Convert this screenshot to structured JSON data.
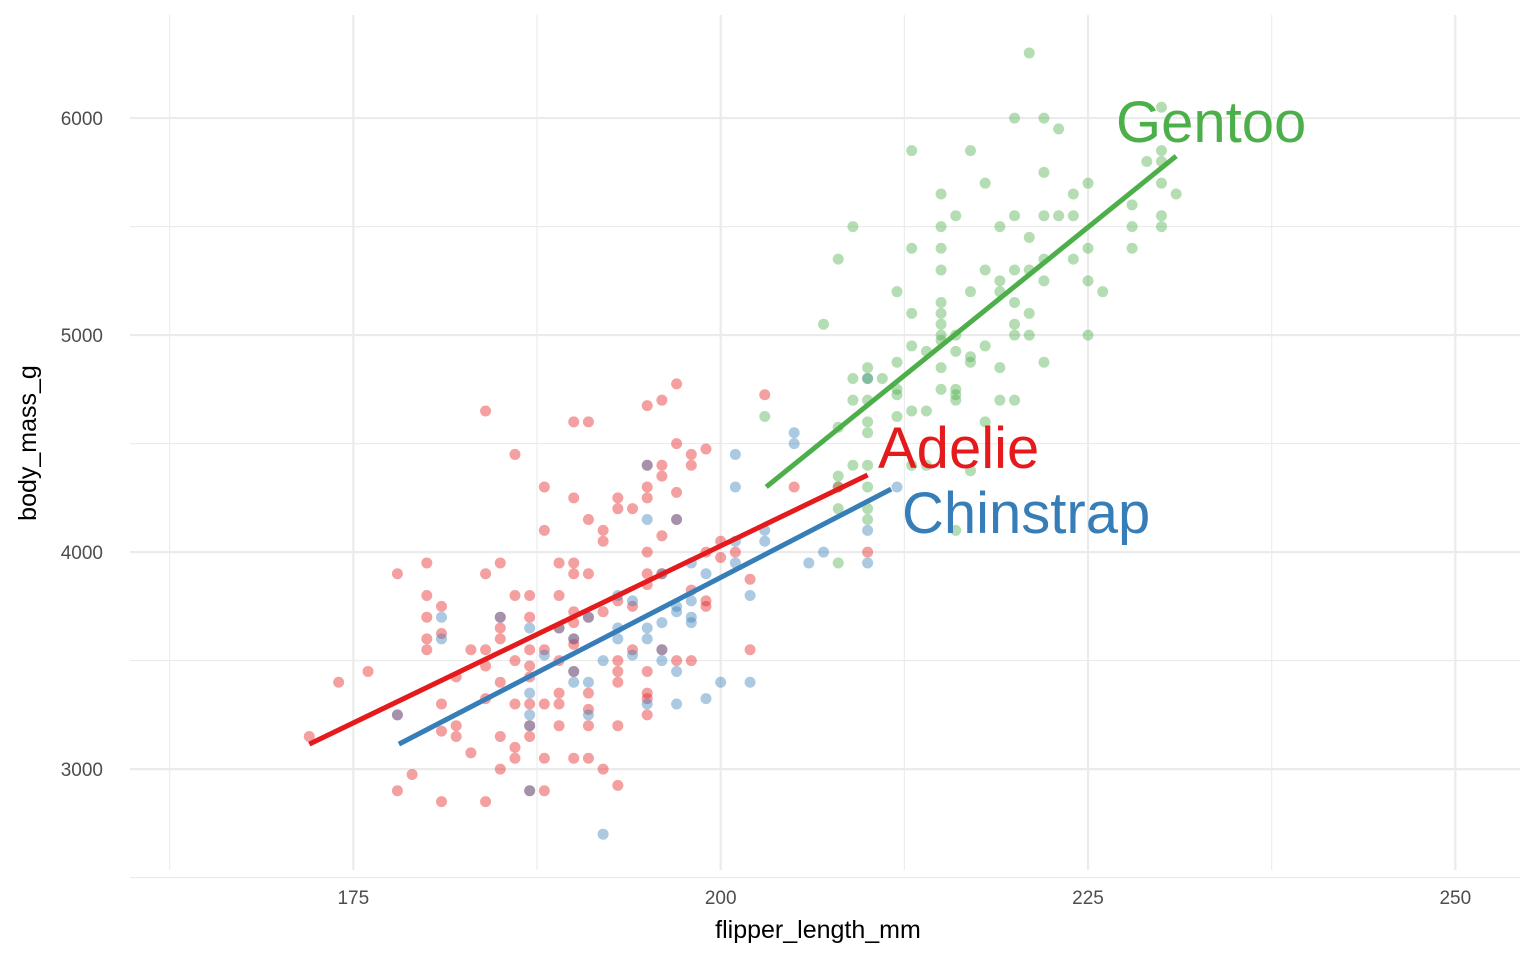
{
  "chart_data": {
    "type": "scatter",
    "title": "",
    "xlabel": "flipper_length_mm",
    "ylabel": "body_mass_g",
    "xlim": [
      159.8,
      254.4
    ],
    "ylim": [
      2535,
      6475
    ],
    "xticks": [
      175,
      200,
      225,
      250
    ],
    "yticks": [
      3000,
      4000,
      5000,
      6000
    ],
    "grid": true,
    "legend": "none (direct labels at end of fit lines)",
    "series": [
      {
        "name": "Adelie",
        "color": "#E41A1C",
        "points_x": [
          172,
          174,
          176,
          178,
          178,
          178,
          179,
          180,
          180,
          180,
          180,
          180,
          181,
          181,
          181,
          181,
          181,
          182,
          182,
          182,
          183,
          183,
          184,
          184,
          184,
          184,
          184,
          184,
          185,
          185,
          185,
          185,
          185,
          185,
          185,
          186,
          186,
          186,
          186,
          186,
          186,
          187,
          187,
          187,
          187,
          187,
          187,
          187,
          187,
          187,
          188,
          188,
          188,
          188,
          188,
          188,
          189,
          189,
          189,
          189,
          189,
          189,
          189,
          190,
          190,
          190,
          190,
          190,
          190,
          190,
          190,
          190,
          190,
          191,
          191,
          191,
          191,
          191,
          191,
          191,
          191,
          192,
          192,
          192,
          192,
          193,
          193,
          193,
          193,
          193,
          193,
          193,
          193,
          194,
          194,
          194,
          195,
          195,
          195,
          195,
          195,
          195,
          195,
          195,
          195,
          195,
          195,
          196,
          196,
          196,
          196,
          196,
          196,
          197,
          197,
          197,
          197,
          197,
          198,
          198,
          198,
          198,
          199,
          199,
          199,
          199,
          200,
          200,
          201,
          202,
          202,
          203,
          205,
          208,
          210
        ],
        "points_y": [
          3150,
          3400,
          3450,
          3900,
          2900,
          3250,
          2975,
          3950,
          3800,
          3700,
          3600,
          3550,
          3750,
          3625,
          3300,
          3175,
          2850,
          3425,
          3200,
          3150,
          3550,
          3075,
          4650,
          3900,
          3550,
          3475,
          3325,
          2850,
          3950,
          3700,
          3650,
          3600,
          3400,
          3150,
          3000,
          4450,
          3800,
          3500,
          3300,
          3100,
          3050,
          3800,
          3700,
          3550,
          3475,
          3425,
          3300,
          3200,
          3150,
          2900,
          4300,
          4100,
          3550,
          3300,
          3050,
          2900,
          3950,
          3800,
          3650,
          3500,
          3350,
          3300,
          3200,
          4600,
          4250,
          3950,
          3900,
          3725,
          3675,
          3600,
          3575,
          3450,
          3050,
          4600,
          4150,
          3900,
          3700,
          3350,
          3275,
          3200,
          3050,
          4100,
          4050,
          3725,
          3000,
          4250,
          4200,
          3775,
          3500,
          3450,
          3400,
          3200,
          2925,
          4200,
          3750,
          3550,
          4675,
          4400,
          4300,
          4250,
          4000,
          3900,
          3850,
          3450,
          3350,
          3325,
          3250,
          4700,
          4400,
          4350,
          4075,
          3900,
          3550,
          4775,
          4500,
          4275,
          4150,
          3500,
          4450,
          4400,
          3825,
          3500,
          4475,
          4000,
          3775,
          3750,
          4050,
          3975,
          4000,
          3875,
          3550,
          4725,
          4300,
          4300,
          4000
        ],
        "fit": {
          "x": [
            172,
            210
          ],
          "y": [
            3115,
            4355
          ]
        }
      },
      {
        "name": "Chinstrap",
        "color": "#377EB8",
        "points_x": [
          178,
          181,
          181,
          185,
          187,
          187,
          187,
          187,
          187,
          188,
          189,
          190,
          190,
          190,
          191,
          191,
          191,
          192,
          192,
          193,
          193,
          193,
          194,
          194,
          195,
          195,
          195,
          195,
          195,
          196,
          196,
          196,
          196,
          197,
          197,
          197,
          197,
          197,
          198,
          198,
          198,
          198,
          199,
          199,
          200,
          201,
          201,
          201,
          201,
          202,
          202,
          203,
          203,
          205,
          205,
          206,
          207,
          210,
          210,
          210,
          212
        ],
        "points_y": [
          3250,
          3700,
          3600,
          3700,
          3650,
          3350,
          3250,
          3200,
          2900,
          3525,
          3650,
          3600,
          3450,
          3400,
          3700,
          3400,
          3250,
          3500,
          2700,
          3800,
          3650,
          3600,
          3775,
          3525,
          4400,
          4150,
          3650,
          3600,
          3300,
          3900,
          3675,
          3550,
          3500,
          4150,
          3750,
          3725,
          3450,
          3300,
          3950,
          3775,
          3700,
          3675,
          3900,
          3325,
          3400,
          4450,
          4300,
          3950,
          4050,
          3800,
          3400,
          4100,
          4050,
          4550,
          4500,
          3950,
          4000,
          3950,
          4100,
          4800,
          4300
        ],
        "fit": {
          "x": [
            178.1,
            211.6
          ],
          "y": [
            3115,
            4290
          ]
        }
      },
      {
        "name": "Gentoo",
        "color": "#4DAF4A",
        "points_x": [
          203,
          207,
          208,
          208,
          208,
          208,
          208,
          208,
          209,
          209,
          209,
          209,
          210,
          210,
          210,
          210,
          210,
          210,
          210,
          210,
          210,
          211,
          212,
          212,
          212,
          212,
          212,
          213,
          213,
          213,
          213,
          213,
          213,
          214,
          214,
          214,
          215,
          215,
          215,
          215,
          215,
          215,
          215,
          215,
          215,
          215,
          215,
          216,
          216,
          216,
          216,
          216,
          216,
          216,
          217,
          217,
          217,
          217,
          217,
          218,
          218,
          218,
          218,
          219,
          219,
          219,
          219,
          219,
          220,
          220,
          220,
          220,
          220,
          220,
          220,
          221,
          221,
          221,
          221,
          221,
          222,
          222,
          222,
          222,
          222,
          222,
          223,
          223,
          224,
          224,
          224,
          225,
          225,
          225,
          225,
          226,
          228,
          228,
          228,
          229,
          230,
          230,
          230,
          230,
          230,
          230,
          231
        ],
        "points_y": [
          4625,
          5050,
          5350,
          4575,
          4300,
          4200,
          3950,
          4350,
          5500,
          4800,
          4700,
          4400,
          4850,
          4800,
          4700,
          4600,
          4550,
          4400,
          4300,
          4200,
          4150,
          4800,
          5200,
          4875,
          4750,
          4725,
          4625,
          5850,
          5400,
          5100,
          4950,
          4650,
          4400,
          4925,
          4650,
          4400,
          5650,
          5500,
          5400,
          5300,
          5150,
          5100,
          5050,
          5000,
          4975,
          4850,
          4750,
          5550,
          5000,
          4925,
          4750,
          4725,
          4700,
          4100,
          5850,
          5200,
          4900,
          4875,
          4375,
          5700,
          5300,
          4950,
          4600,
          5500,
          5250,
          5200,
          4850,
          4700,
          6000,
          5550,
          5300,
          5150,
          5050,
          5000,
          4700,
          6300,
          5450,
          5300,
          5100,
          5000,
          6000,
          5750,
          5550,
          5350,
          5250,
          4875,
          5950,
          5550,
          5650,
          5550,
          5350,
          5700,
          5400,
          5250,
          5000,
          5200,
          5600,
          5500,
          5400,
          5800,
          6050,
          5850,
          5800,
          5700,
          5550,
          5500,
          5650
        ],
        "fit": {
          "x": [
            203.1,
            231
          ],
          "y": [
            4300,
            5825
          ]
        }
      }
    ]
  }
}
